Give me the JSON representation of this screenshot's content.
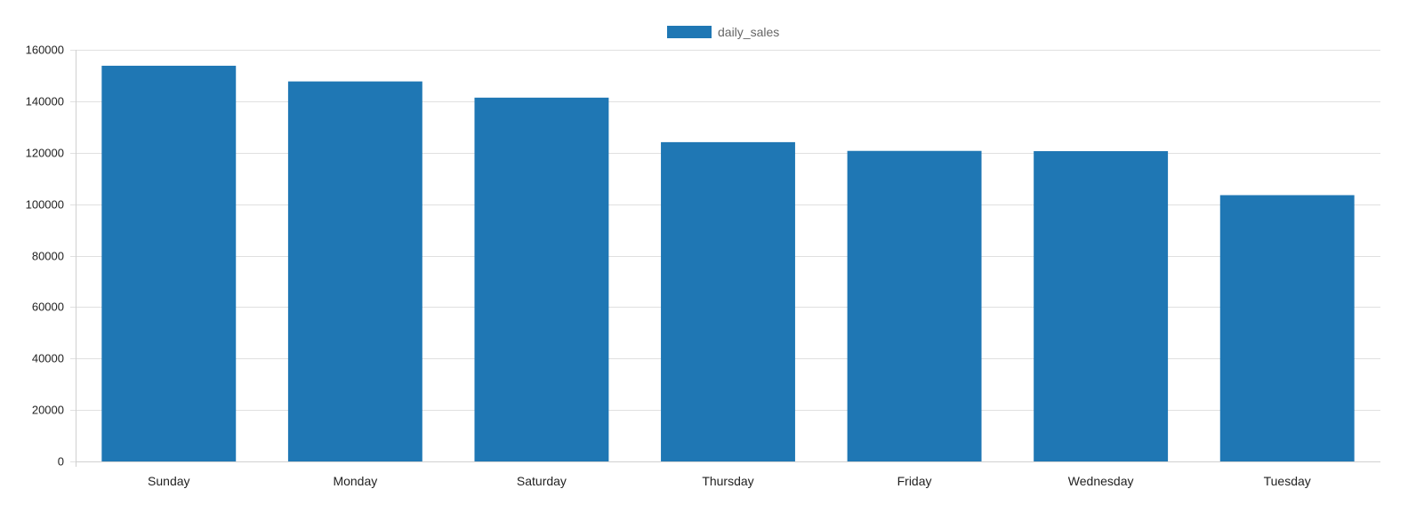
{
  "chart_data": {
    "type": "bar",
    "categories": [
      "Sunday",
      "Monday",
      "Saturday",
      "Thursday",
      "Friday",
      "Wednesday",
      "Tuesday"
    ],
    "series": [
      {
        "name": "daily_sales",
        "values": [
          153800,
          147700,
          141400,
          124100,
          120700,
          120600,
          103500
        ],
        "color": "#1f77b4"
      }
    ],
    "ylim": [
      0,
      160000
    ],
    "yticks": [
      0,
      20000,
      40000,
      60000,
      80000,
      100000,
      120000,
      140000,
      160000
    ],
    "grid": true,
    "legend_position": "top-center"
  }
}
